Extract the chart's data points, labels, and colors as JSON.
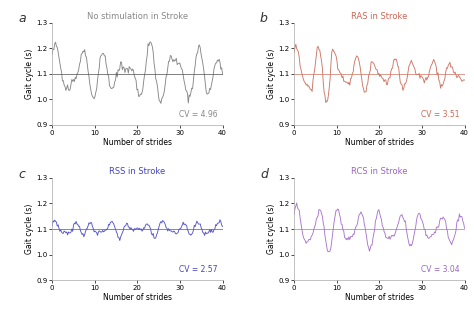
{
  "panels": [
    {
      "label": "a",
      "title": "No stimulation in Stroke",
      "title_color": "#888888",
      "cv": "CV = 4.96",
      "cv_color": "#888888",
      "line_color": "#888888",
      "mean_line_color": "#555555"
    },
    {
      "label": "b",
      "title": "RAS in Stroke",
      "title_color": "#cc6655",
      "cv": "CV = 3.51",
      "cv_color": "#cc6655",
      "line_color": "#cc7766",
      "mean_line_color": "#cc7766"
    },
    {
      "label": "c",
      "title": "RSS in Stroke",
      "title_color": "#4444bb",
      "cv": "CV = 2.57",
      "cv_color": "#4444bb",
      "line_color": "#5555cc",
      "mean_line_color": "#5555cc"
    },
    {
      "label": "d",
      "title": "RCS in Stroke",
      "title_color": "#9966bb",
      "cv": "CV = 3.04",
      "cv_color": "#9966bb",
      "line_color": "#aa77cc",
      "mean_line_color": "#aa77cc"
    }
  ],
  "mean_value": 1.1,
  "xlim": [
    0,
    40
  ],
  "ylim": [
    0.9,
    1.3
  ],
  "yticks": [
    0.9,
    1.0,
    1.1,
    1.2,
    1.3
  ],
  "xticks": [
    0,
    10,
    20,
    30,
    40
  ],
  "xlabel": "Number of strides",
  "ylabel": "Gait cycle (s)",
  "bg_color": "#ffffff"
}
